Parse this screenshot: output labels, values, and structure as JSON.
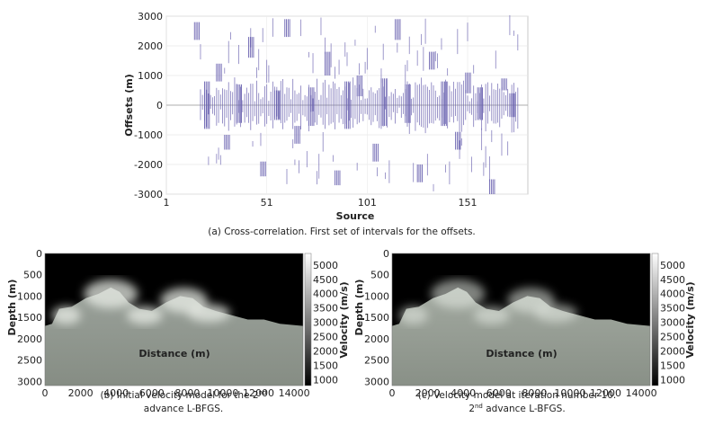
{
  "chart_data": [
    {
      "type": "scatter",
      "xlabel": "Source",
      "ylabel": "Offsets (m)",
      "xlim": [
        1,
        181
      ],
      "ylim": [
        -3000,
        3000
      ],
      "x_ticks": [
        "1",
        "51",
        "101",
        "151"
      ],
      "y_ticks": [
        "3000",
        "2000",
        "1000",
        "0",
        "-1000",
        "-2000",
        "-3000"
      ],
      "grid": true,
      "marker_color": "#6a62b0",
      "caption": "(a) Cross-correlation. First set of intervals for the offsets.",
      "series": [
        {
          "intervals": [
            {
              "source": 15,
              "offset_min": 2200,
              "offset_max": 2800
            },
            {
              "source": 20,
              "offset_min": -800,
              "offset_max": 800
            },
            {
              "source": 26,
              "offset_min": 800,
              "offset_max": 1400
            },
            {
              "source": 30,
              "offset_min": -1500,
              "offset_max": -1000
            },
            {
              "source": 36,
              "offset_min": -600,
              "offset_max": 700
            },
            {
              "source": 42,
              "offset_min": 1600,
              "offset_max": 2300
            },
            {
              "source": 48,
              "offset_min": -2400,
              "offset_max": -1900
            },
            {
              "source": 55,
              "offset_min": -500,
              "offset_max": 500
            },
            {
              "source": 60,
              "offset_min": 2300,
              "offset_max": 2900
            },
            {
              "source": 65,
              "offset_min": -1300,
              "offset_max": -700
            },
            {
              "source": 72,
              "offset_min": -700,
              "offset_max": 600
            },
            {
              "source": 80,
              "offset_min": 1000,
              "offset_max": 1800
            },
            {
              "source": 85,
              "offset_min": -2700,
              "offset_max": -2200
            },
            {
              "source": 90,
              "offset_min": -800,
              "offset_max": 800
            },
            {
              "source": 96,
              "offset_min": 300,
              "offset_max": 1000
            },
            {
              "source": 104,
              "offset_min": -1900,
              "offset_max": -1300
            },
            {
              "source": 108,
              "offset_min": -700,
              "offset_max": 900
            },
            {
              "source": 115,
              "offset_min": 2200,
              "offset_max": 2900
            },
            {
              "source": 120,
              "offset_min": -600,
              "offset_max": 700
            },
            {
              "source": 126,
              "offset_min": -2600,
              "offset_max": -2000
            },
            {
              "source": 132,
              "offset_min": 1200,
              "offset_max": 1800
            },
            {
              "source": 138,
              "offset_min": -700,
              "offset_max": 800
            },
            {
              "source": 145,
              "offset_min": -1500,
              "offset_max": -900
            },
            {
              "source": 150,
              "offset_min": 400,
              "offset_max": 1100
            },
            {
              "source": 156,
              "offset_min": -500,
              "offset_max": 600
            },
            {
              "source": 162,
              "offset_min": -3000,
              "offset_max": -2500
            },
            {
              "source": 168,
              "offset_min": 500,
              "offset_max": 900
            },
            {
              "source": 172,
              "offset_min": -400,
              "offset_max": 400
            }
          ]
        }
      ]
    },
    {
      "type": "heatmap",
      "xlabel": "Distance (m)",
      "ylabel": "Depth (m)",
      "colorbar_label": "Velocity (m/s)",
      "x_ticks": [
        "0",
        "2000",
        "4000",
        "6000",
        "8000",
        "10000",
        "12000",
        "14000"
      ],
      "y_ticks": [
        "0",
        "500",
        "1000",
        "1500",
        "2000",
        "2500",
        "3000"
      ],
      "colorbar_ticks": [
        "5000",
        "4500",
        "4000",
        "3500",
        "3000",
        "2500",
        "2000",
        "1500",
        "1000"
      ],
      "xlim": [
        0,
        14500
      ],
      "ylim": [
        0,
        3100
      ],
      "clim": [
        800,
        5400
      ],
      "colormap": "gray",
      "caption_line1": "(b) Initial velocity model for the 2",
      "caption_sup": "nd",
      "caption_line2": "advance L-BFGS."
    },
    {
      "type": "heatmap",
      "xlabel": "Distance (m)",
      "ylabel": "Depth (m)",
      "colorbar_label": "Velocity (m/s)",
      "x_ticks": [
        "0",
        "2000",
        "4000",
        "6000",
        "8000",
        "10000",
        "12000",
        "14000"
      ],
      "y_ticks": [
        "0",
        "500",
        "1000",
        "1500",
        "2000",
        "2500",
        "3000"
      ],
      "colorbar_ticks": [
        "5000",
        "4500",
        "4000",
        "3500",
        "3000",
        "2500",
        "2000",
        "1500",
        "1000"
      ],
      "xlim": [
        0,
        14500
      ],
      "ylim": [
        0,
        3100
      ],
      "clim": [
        800,
        5400
      ],
      "colormap": "gray",
      "caption_line1": "(c) Velocity model at iteration number 10.",
      "caption_sup": "nd",
      "caption_line2": "advance L-BFGS.",
      "caption_line2_prefix": "2"
    }
  ]
}
